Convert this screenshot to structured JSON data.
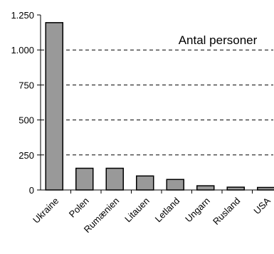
{
  "chart_data": {
    "type": "bar",
    "title": "Antal personer",
    "xlabel": "",
    "ylabel": "",
    "categories": [
      "Ukraine",
      "Polen",
      "Rumænien",
      "Litauen",
      "Letland",
      "Ungarn",
      "Rusland",
      "USA"
    ],
    "values": [
      1195,
      155,
      155,
      100,
      75,
      30,
      20,
      18
    ],
    "ylim": [
      0,
      1250
    ],
    "yticks": [
      0,
      250,
      500,
      750,
      1000,
      1250
    ],
    "ytick_labels": [
      "0",
      "250",
      "500",
      "750",
      "1.000",
      "1.250"
    ],
    "grid": "dashed horizontal",
    "bar_color": "#999999",
    "bar_edge_color": "#000000"
  }
}
